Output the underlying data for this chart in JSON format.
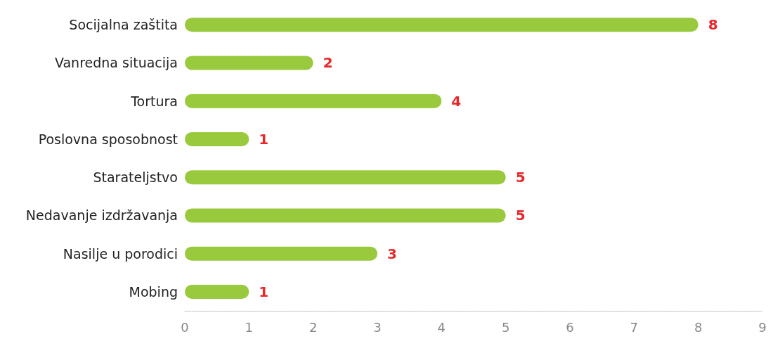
{
  "chart_data": {
    "type": "bar",
    "orientation": "horizontal",
    "categories": [
      "Socijalna zaštita",
      "Vanredna situacija",
      "Tortura",
      "Poslovna sposobnost",
      "Starateljstvo",
      "Nedavanje izdržavanja",
      "Nasilje u porodici",
      "Mobing"
    ],
    "values": [
      8,
      2,
      4,
      1,
      5,
      5,
      3,
      1
    ],
    "color": "#99c93c",
    "xlim": [
      0,
      9
    ],
    "xticks": [
      0,
      1,
      2,
      3,
      4,
      5,
      6,
      7,
      8,
      9
    ],
    "grid": false,
    "data_labels": true
  }
}
